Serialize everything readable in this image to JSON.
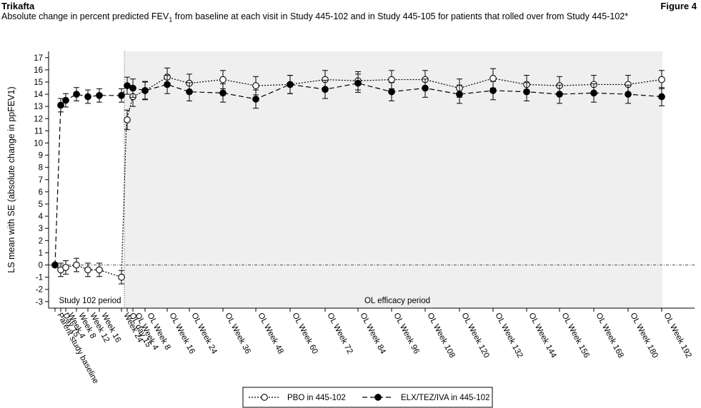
{
  "header": {
    "product": "Trikafta",
    "figure_label": "Figure 4",
    "subtitle_main": "Absolute change in percent predicted FEV",
    "subtitle_sub": "1",
    "subtitle_rest": " from baseline at each visit in Study 445-102 and in Study 445-105 for patients that rolled over from Study 445-102*"
  },
  "chart_data": {
    "type": "line",
    "ylabel": "LS mean with SE (absolute change in ppFEV1)",
    "ylim": [
      -3,
      17
    ],
    "yticks": [
      -3,
      -2,
      -1,
      0,
      1,
      2,
      3,
      4,
      5,
      6,
      7,
      8,
      9,
      10,
      11,
      12,
      13,
      14,
      15,
      16,
      17
    ],
    "x_tick_labels": [
      "Parent study baseline",
      "Day 15",
      "Week 4",
      "Week 8",
      "Week 12",
      "Week 16",
      "Week 24",
      "OL day 15",
      "OL Week 4",
      "OL Week 8",
      "OL Week 16",
      "OL Week 24",
      "OL Week 36",
      "OL Week 48",
      "OL Week 60",
      "OL Week 72",
      "OL Week 84",
      "OL Week 96",
      "OL Week 108",
      "OL Week 120",
      "OL Week 132",
      "OL Week 144",
      "OL Week 156",
      "OL Week 168",
      "OL Week 180",
      "OL Week 192"
    ],
    "period_labels": [
      "Study 102 period",
      "OL efficacy period"
    ],
    "series": [
      {
        "name": "PBO in 445-102",
        "style": "dotted-open-circle",
        "study102": {
          "x": [
            "Parent study baseline",
            "Day 15",
            "Week 4",
            "Week 8",
            "Week 12",
            "Week 16",
            "Week 24"
          ],
          "y": [
            0.0,
            -0.4,
            -0.2,
            0.0,
            -0.4,
            -0.4,
            -1.0
          ],
          "se": [
            0.0,
            0.55,
            0.55,
            0.55,
            0.55,
            0.55,
            0.55
          ]
        },
        "open_label": {
          "x": [
            "Week 24",
            "OL day 15",
            "OL Week 4",
            "OL Week 8",
            "OL Week 16",
            "OL Week 24",
            "OL Week 36",
            "OL Week 48",
            "OL Week 60",
            "OL Week 72",
            "OL Week 84",
            "OL Week 96",
            "OL Week 108",
            "OL Week 120",
            "OL Week 132",
            "OL Week 144",
            "OL Week 156",
            "OL Week 168",
            "OL Week 180",
            "OL Week 192"
          ],
          "y": [
            -1.0,
            11.9,
            13.8,
            14.3,
            15.4,
            14.9,
            15.2,
            14.7,
            14.8,
            15.2,
            15.1,
            15.2,
            15.2,
            14.5,
            15.3,
            14.8,
            14.7,
            14.8,
            14.8,
            15.2
          ],
          "se": [
            0.55,
            0.8,
            0.8,
            0.7,
            0.75,
            0.75,
            0.75,
            0.75,
            0.75,
            0.75,
            0.75,
            0.75,
            0.75,
            0.75,
            0.8,
            0.75,
            0.75,
            0.75,
            0.75,
            0.75
          ]
        }
      },
      {
        "name": "ELX/TEZ/IVA in 445-102",
        "style": "dashed-filled-circle",
        "study102": {
          "x": [
            "Parent study baseline",
            "Day 15",
            "Week 4",
            "Week 8",
            "Week 12",
            "Week 16",
            "Week 24"
          ],
          "y": [
            0.0,
            13.1,
            13.5,
            14.0,
            13.8,
            13.9,
            13.9
          ],
          "se": [
            0.0,
            0.55,
            0.55,
            0.55,
            0.55,
            0.55,
            0.55
          ]
        },
        "open_label": {
          "x": [
            "Week 24",
            "OL day 15",
            "OL Week 4",
            "OL Week 8",
            "OL Week 16",
            "OL Week 24",
            "OL Week 36",
            "OL Week 48",
            "OL Week 60",
            "OL Week 72",
            "OL Week 84",
            "OL Week 96",
            "OL Week 108",
            "OL Week 120",
            "OL Week 132",
            "OL Week 144",
            "OL Week 156",
            "OL Week 168",
            "OL Week 180",
            "OL Week 192"
          ],
          "y": [
            13.9,
            14.7,
            14.5,
            14.3,
            14.8,
            14.2,
            14.1,
            13.6,
            14.8,
            14.4,
            14.9,
            14.2,
            14.5,
            14.0,
            14.3,
            14.2,
            14.0,
            14.1,
            14.0,
            13.8
          ],
          "se": [
            0.55,
            0.7,
            0.75,
            0.75,
            0.75,
            0.75,
            0.75,
            0.75,
            0.75,
            0.75,
            0.75,
            0.75,
            0.75,
            0.75,
            0.75,
            0.75,
            0.75,
            0.75,
            0.75,
            0.75
          ]
        }
      }
    ],
    "reference_line_y": 0,
    "legend_position": "bottom-center",
    "grid": false
  }
}
